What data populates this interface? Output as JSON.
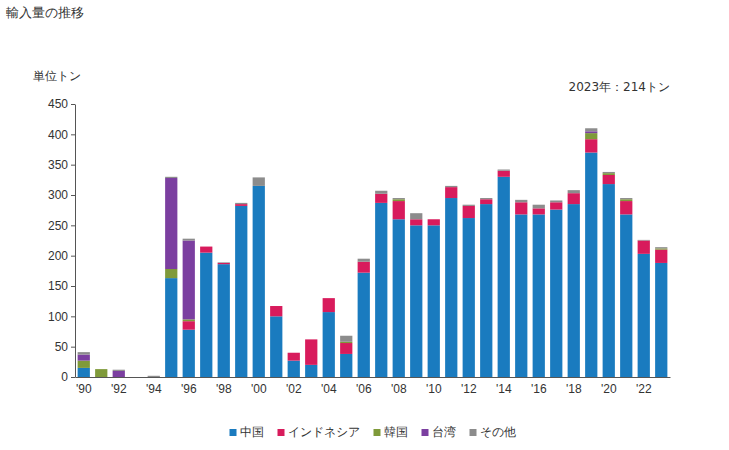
{
  "chart_data": {
    "type": "bar",
    "stacked": true,
    "title": "輸入量の推移",
    "y_label": "単位トン",
    "annotation": "2023年：214トン",
    "categories": [
      "'90",
      null,
      "'92",
      null,
      "'94",
      null,
      "'96",
      null,
      "'98",
      null,
      "'00",
      null,
      "'02",
      null,
      "'04",
      null,
      "'06",
      null,
      "'08",
      null,
      "'10",
      null,
      "'12",
      null,
      "'14",
      null,
      "'16",
      null,
      "'18",
      null,
      "'20",
      null,
      "'22",
      null
    ],
    "series": [
      {
        "name": "中国",
        "color": "#1a7bbf",
        "values": [
          15,
          0,
          0,
          0,
          0,
          163,
          78,
          205,
          186,
          282,
          315,
          100,
          27,
          20,
          107,
          38,
          172,
          287,
          260,
          250,
          250,
          295,
          262,
          285,
          330,
          268,
          268,
          276,
          285,
          370,
          318,
          268,
          203,
          188
        ]
      },
      {
        "name": "インドネシア",
        "color": "#d81b5c",
        "values": [
          0,
          0,
          0,
          0,
          0,
          0,
          14,
          10,
          2,
          3,
          0,
          17,
          13,
          42,
          23,
          18,
          18,
          15,
          30,
          10,
          10,
          18,
          20,
          8,
          10,
          20,
          10,
          12,
          18,
          22,
          15,
          22,
          22,
          22
        ]
      },
      {
        "name": "韓国",
        "color": "#7f9a3a",
        "values": [
          12,
          13,
          0,
          0,
          0,
          15,
          3,
          0,
          0,
          0,
          0,
          0,
          0,
          0,
          0,
          2,
          0,
          0,
          3,
          0,
          0,
          0,
          0,
          0,
          0,
          0,
          0,
          0,
          0,
          10,
          3,
          3,
          0,
          2
        ]
      },
      {
        "name": "台湾",
        "color": "#7b3fa0",
        "values": [
          10,
          0,
          10,
          0,
          0,
          150,
          130,
          0,
          0,
          0,
          0,
          0,
          0,
          0,
          0,
          0,
          0,
          0,
          0,
          0,
          0,
          0,
          0,
          0,
          0,
          0,
          0,
          0,
          0,
          3,
          0,
          0,
          0,
          0
        ]
      },
      {
        "name": "その他",
        "color": "#8c8c8c",
        "values": [
          4,
          0,
          2,
          0,
          2,
          2,
          3,
          0,
          1,
          2,
          14,
          0,
          0,
          0,
          0,
          10,
          5,
          5,
          2,
          10,
          0,
          2,
          2,
          2,
          2,
          4,
          6,
          3,
          5,
          5,
          2,
          2,
          1,
          2
        ]
      }
    ],
    "ylim": [
      0,
      450
    ],
    "yticks": [
      0,
      50,
      100,
      150,
      200,
      250,
      300,
      350,
      400,
      450
    ],
    "grid": false,
    "legend": "bottom"
  }
}
